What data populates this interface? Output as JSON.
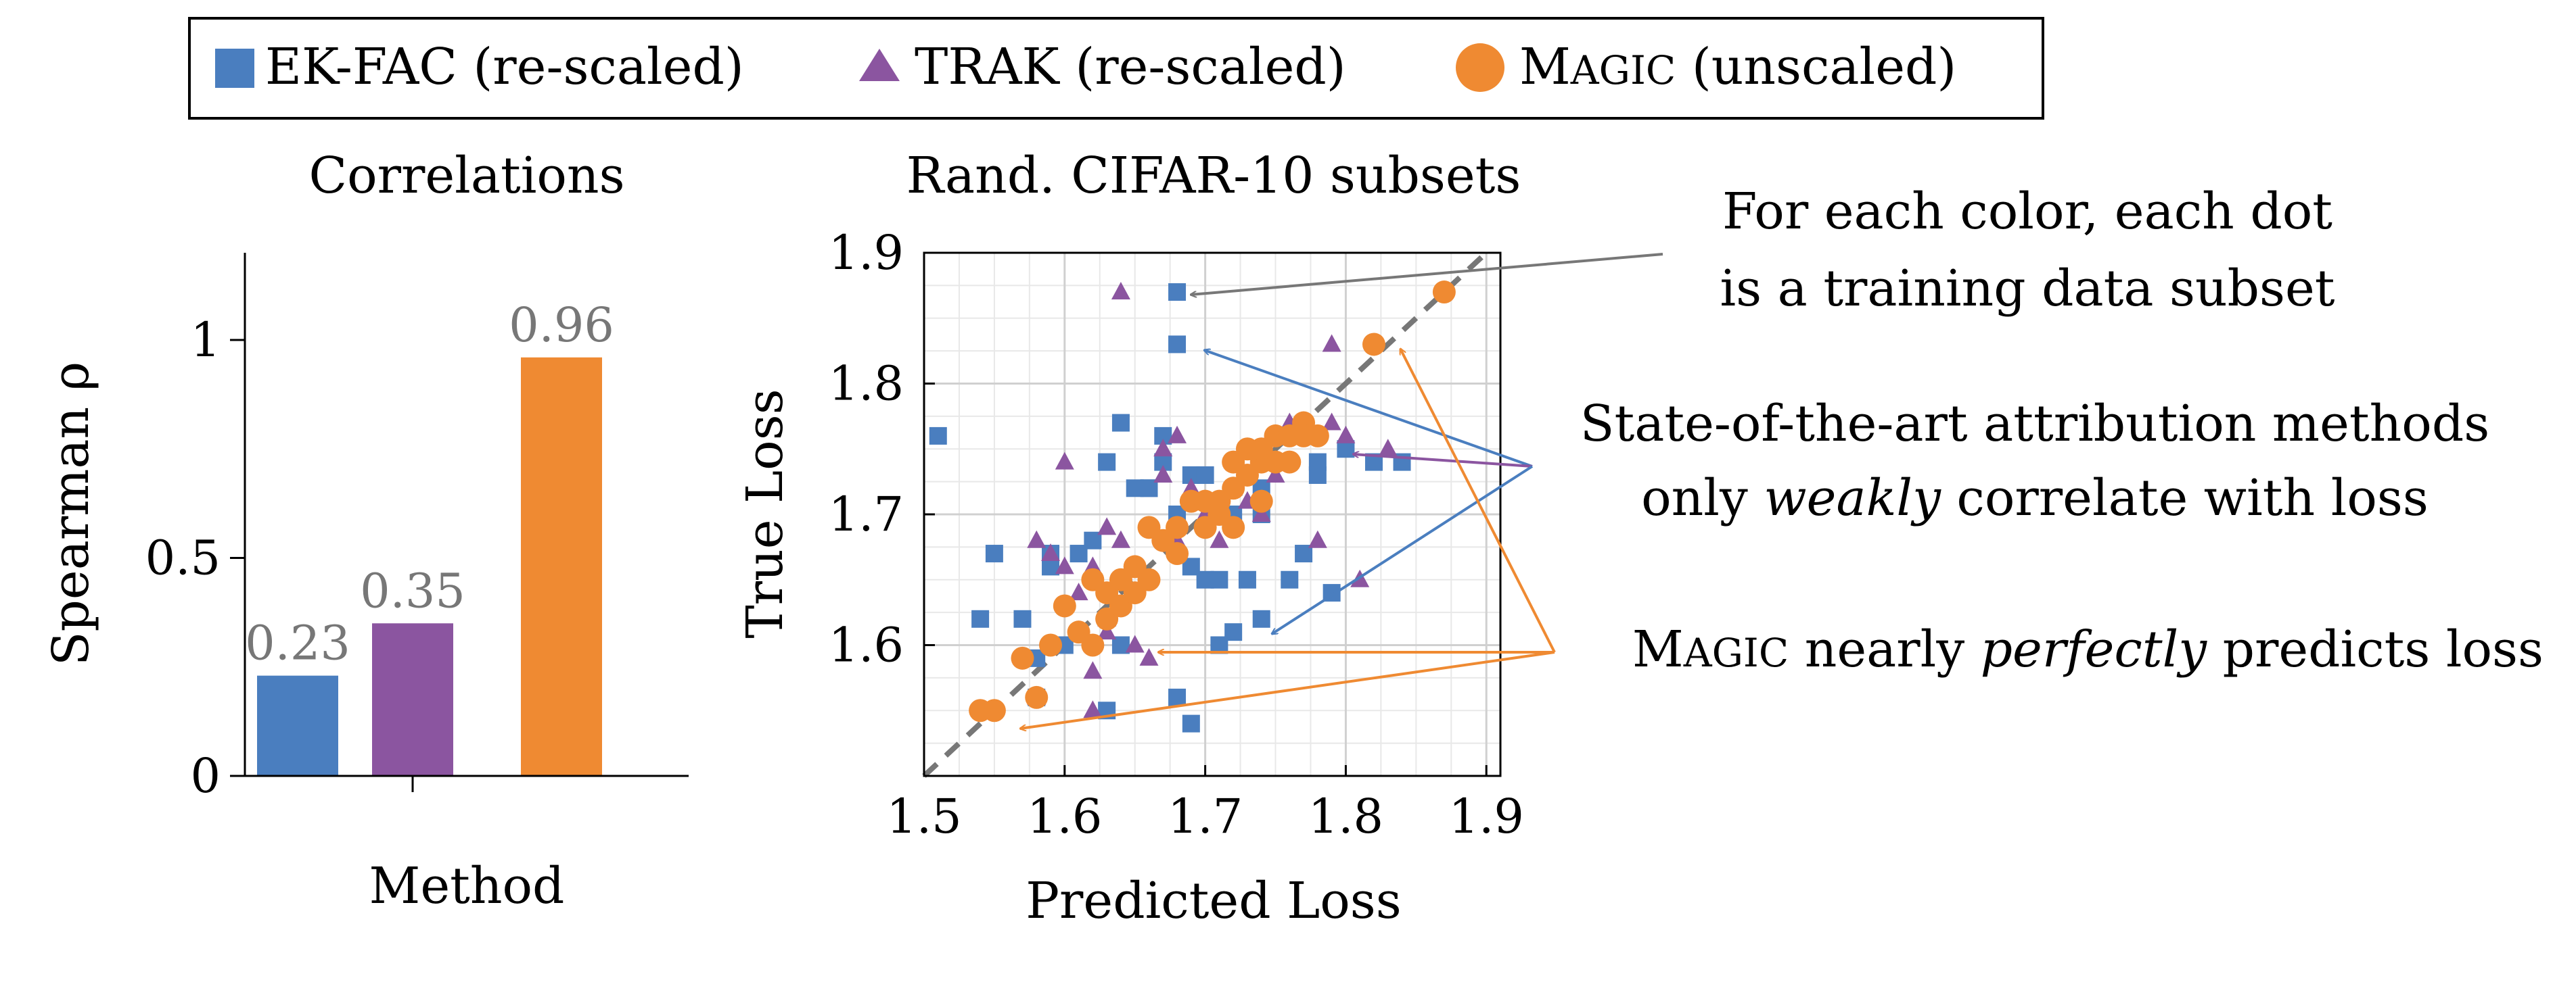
{
  "legend": {
    "items": [
      {
        "marker": "square",
        "color": "#4a7ebf",
        "label": "EK-FAC (re-scaled)"
      },
      {
        "marker": "triangle",
        "color": "#8b55a0",
        "label": "TRAK (re-scaled)"
      },
      {
        "marker": "circle",
        "color": "#ef8a32",
        "label_cap": "M",
        "label_smallcaps": "AGIC",
        "label_rest": " (unscaled)"
      }
    ]
  },
  "annotations": {
    "dots": [
      "For each color, each dot",
      "is a training data subset"
    ],
    "sota_line1": "State-of-the-art attribution methods",
    "sota_line2_pre": "only ",
    "sota_line2_em": "weakly",
    "sota_line2_post": " correlate with loss",
    "magic_cap": "M",
    "magic_smallcaps": "AGIC",
    "magic_mid": " nearly ",
    "magic_em": "perfectly",
    "magic_post": " predicts loss"
  },
  "chart_data": [
    {
      "type": "bar",
      "title": "Correlations",
      "xlabel": "Method",
      "ylabel": "Spearman ρ",
      "ylim": [
        0,
        1.2
      ],
      "yticks": [
        "0",
        "0.5",
        "1"
      ],
      "categories": [
        "EK-FAC",
        "TRAK",
        "MAGIC"
      ],
      "values": [
        0.23,
        0.35,
        0.96
      ],
      "value_labels": [
        "0.23",
        "0.35",
        "0.96"
      ],
      "colors": [
        "#4a7ebf",
        "#8b55a0",
        "#ef8a32"
      ]
    },
    {
      "type": "scatter",
      "title": "Rand. CIFAR-10 subsets",
      "xlabel": "Predicted Loss",
      "ylabel": "True Loss",
      "xlim": [
        1.5,
        1.91
      ],
      "ylim": [
        1.5,
        1.9
      ],
      "xticks": [
        "1.5",
        "1.6",
        "1.7",
        "1.8",
        "1.9"
      ],
      "yticks": [
        "1.6",
        "1.7",
        "1.8",
        "1.9"
      ],
      "grid": true,
      "reference_line": "y = x (dashed)",
      "series": [
        {
          "name": "EK-FAC (re-scaled)",
          "marker": "square",
          "color": "#4a7ebf",
          "points": [
            [
              1.68,
              1.87
            ],
            [
              1.68,
              1.83
            ],
            [
              1.51,
              1.76
            ],
            [
              1.64,
              1.77
            ],
            [
              1.55,
              1.67
            ],
            [
              1.54,
              1.62
            ],
            [
              1.57,
              1.62
            ],
            [
              1.58,
              1.59
            ],
            [
              1.58,
              1.56
            ],
            [
              1.59,
              1.66
            ],
            [
              1.59,
              1.67
            ],
            [
              1.6,
              1.6
            ],
            [
              1.61,
              1.67
            ],
            [
              1.62,
              1.68
            ],
            [
              1.63,
              1.74
            ],
            [
              1.65,
              1.72
            ],
            [
              1.66,
              1.72
            ],
            [
              1.67,
              1.76
            ],
            [
              1.67,
              1.74
            ],
            [
              1.68,
              1.7
            ],
            [
              1.69,
              1.66
            ],
            [
              1.69,
              1.73
            ],
            [
              1.7,
              1.65
            ],
            [
              1.71,
              1.65
            ],
            [
              1.71,
              1.6
            ],
            [
              1.72,
              1.61
            ],
            [
              1.72,
              1.7
            ],
            [
              1.73,
              1.65
            ],
            [
              1.74,
              1.72
            ],
            [
              1.74,
              1.7
            ],
            [
              1.74,
              1.62
            ],
            [
              1.75,
              1.74
            ],
            [
              1.76,
              1.65
            ],
            [
              1.77,
              1.67
            ],
            [
              1.78,
              1.74
            ],
            [
              1.78,
              1.73
            ],
            [
              1.79,
              1.64
            ],
            [
              1.8,
              1.75
            ],
            [
              1.82,
              1.74
            ],
            [
              1.84,
              1.74
            ],
            [
              1.63,
              1.55
            ],
            [
              1.68,
              1.56
            ],
            [
              1.69,
              1.54
            ],
            [
              1.64,
              1.6
            ],
            [
              1.66,
              1.72
            ],
            [
              1.7,
              1.73
            ]
          ]
        },
        {
          "name": "TRAK (re-scaled)",
          "marker": "triangle",
          "color": "#8b55a0",
          "points": [
            [
              1.64,
              1.87
            ],
            [
              1.79,
              1.83
            ],
            [
              1.6,
              1.74
            ],
            [
              1.58,
              1.68
            ],
            [
              1.59,
              1.67
            ],
            [
              1.6,
              1.66
            ],
            [
              1.61,
              1.64
            ],
            [
              1.62,
              1.66
            ],
            [
              1.62,
              1.58
            ],
            [
              1.63,
              1.62
            ],
            [
              1.63,
              1.69
            ],
            [
              1.64,
              1.68
            ],
            [
              1.65,
              1.6
            ],
            [
              1.66,
              1.59
            ],
            [
              1.67,
              1.75
            ],
            [
              1.67,
              1.73
            ],
            [
              1.68,
              1.76
            ],
            [
              1.68,
              1.68
            ],
            [
              1.69,
              1.72
            ],
            [
              1.7,
              1.7
            ],
            [
              1.71,
              1.68
            ],
            [
              1.72,
              1.72
            ],
            [
              1.73,
              1.71
            ],
            [
              1.74,
              1.7
            ],
            [
              1.75,
              1.73
            ],
            [
              1.76,
              1.77
            ],
            [
              1.77,
              1.76
            ],
            [
              1.78,
              1.68
            ],
            [
              1.79,
              1.77
            ],
            [
              1.8,
              1.76
            ],
            [
              1.81,
              1.65
            ],
            [
              1.83,
              1.75
            ],
            [
              1.62,
              1.55
            ],
            [
              1.63,
              1.61
            ],
            [
              1.58,
              1.56
            ]
          ]
        },
        {
          "name": "MAGIC (unscaled)",
          "marker": "circle",
          "color": "#ef8a32",
          "points": [
            [
              1.87,
              1.87
            ],
            [
              1.82,
              1.83
            ],
            [
              1.54,
              1.55
            ],
            [
              1.55,
              1.55
            ],
            [
              1.57,
              1.59
            ],
            [
              1.58,
              1.56
            ],
            [
              1.59,
              1.6
            ],
            [
              1.6,
              1.63
            ],
            [
              1.61,
              1.61
            ],
            [
              1.62,
              1.6
            ],
            [
              1.62,
              1.65
            ],
            [
              1.63,
              1.64
            ],
            [
              1.63,
              1.62
            ],
            [
              1.64,
              1.65
            ],
            [
              1.64,
              1.63
            ],
            [
              1.65,
              1.66
            ],
            [
              1.65,
              1.64
            ],
            [
              1.66,
              1.65
            ],
            [
              1.66,
              1.69
            ],
            [
              1.67,
              1.68
            ],
            [
              1.68,
              1.69
            ],
            [
              1.68,
              1.67
            ],
            [
              1.69,
              1.71
            ],
            [
              1.7,
              1.69
            ],
            [
              1.7,
              1.71
            ],
            [
              1.71,
              1.7
            ],
            [
              1.71,
              1.71
            ],
            [
              1.72,
              1.72
            ],
            [
              1.72,
              1.69
            ],
            [
              1.73,
              1.75
            ],
            [
              1.73,
              1.73
            ],
            [
              1.74,
              1.74
            ],
            [
              1.74,
              1.71
            ],
            [
              1.75,
              1.76
            ],
            [
              1.75,
              1.74
            ],
            [
              1.76,
              1.76
            ],
            [
              1.76,
              1.74
            ],
            [
              1.77,
              1.77
            ],
            [
              1.77,
              1.76
            ],
            [
              1.78,
              1.76
            ],
            [
              1.74,
              1.75
            ],
            [
              1.72,
              1.74
            ]
          ]
        }
      ]
    }
  ]
}
